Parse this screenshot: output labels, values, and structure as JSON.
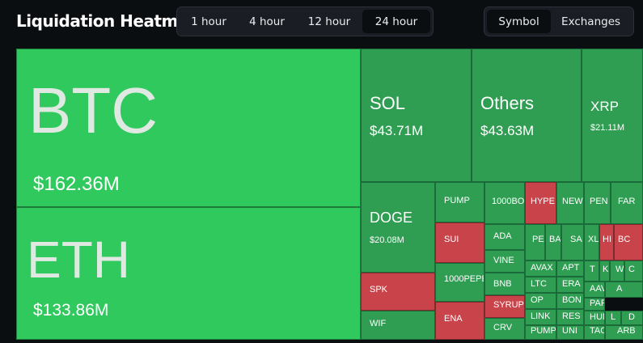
{
  "header": {
    "title": "Liquidation Heatmap"
  },
  "timeframes": [
    "1 hour",
    "4 hour",
    "12 hour",
    "24 hour"
  ],
  "active_timeframe": "24 hour",
  "views": [
    "Symbol",
    "Exchanges"
  ],
  "active_view": "Symbol",
  "colors": {
    "long_up": "#2f9e52",
    "highlight": "#30c95e",
    "short_down": "#c9444a",
    "bg": "#0b0e11"
  },
  "heatmap": [
    {
      "symbol": "BTC",
      "value": "$162.36M",
      "color": "highlight"
    },
    {
      "symbol": "ETH",
      "value": "$133.86M",
      "color": "highlight"
    },
    {
      "symbol": "SOL",
      "value": "$43.71M",
      "color": "up"
    },
    {
      "symbol": "Others",
      "value": "$43.63M",
      "color": "up"
    },
    {
      "symbol": "XRP",
      "value": "$21.11M",
      "color": "up"
    },
    {
      "symbol": "DOGE",
      "value": "$20.08M",
      "color": "up"
    },
    {
      "symbol": "PUMP",
      "color": "up"
    },
    {
      "symbol": "1000BO",
      "color": "up"
    },
    {
      "symbol": "HYPE",
      "color": "down"
    },
    {
      "symbol": "NEW",
      "color": "up"
    },
    {
      "symbol": "PEN",
      "color": "up"
    },
    {
      "symbol": "FAR",
      "color": "up"
    },
    {
      "symbol": "SUI",
      "color": "down"
    },
    {
      "symbol": "ADA",
      "color": "up"
    },
    {
      "symbol": "PE",
      "color": "up"
    },
    {
      "symbol": "BA",
      "color": "up"
    },
    {
      "symbol": "SA",
      "color": "up"
    },
    {
      "symbol": "XL",
      "color": "up"
    },
    {
      "symbol": "HI",
      "color": "down"
    },
    {
      "symbol": "BC",
      "color": "down"
    },
    {
      "symbol": "VINE",
      "color": "up"
    },
    {
      "symbol": "AVAX",
      "color": "up"
    },
    {
      "symbol": "APT",
      "color": "up"
    },
    {
      "symbol": "T",
      "color": "up"
    },
    {
      "symbol": "K",
      "color": "up"
    },
    {
      "symbol": "W",
      "color": "up"
    },
    {
      "symbol": "C",
      "color": "up"
    },
    {
      "symbol": "1000PEPE",
      "color": "up"
    },
    {
      "symbol": "BNB",
      "color": "up"
    },
    {
      "symbol": "LTC",
      "color": "up"
    },
    {
      "symbol": "ERA",
      "color": "up"
    },
    {
      "symbol": "AAV",
      "color": "up"
    },
    {
      "symbol": "A",
      "color": "up"
    },
    {
      "symbol": "SPK",
      "color": "down"
    },
    {
      "symbol": "OP",
      "color": "up"
    },
    {
      "symbol": "BON",
      "color": "up"
    },
    {
      "symbol": "PAR",
      "color": "up"
    },
    {
      "symbol": "ENA",
      "color": "down"
    },
    {
      "symbol": "SYRUP",
      "color": "down"
    },
    {
      "symbol": "LINK",
      "color": "up"
    },
    {
      "symbol": "RES",
      "color": "up"
    },
    {
      "symbol": "HUN",
      "color": "up"
    },
    {
      "symbol": "L",
      "color": "up"
    },
    {
      "symbol": "D",
      "color": "up"
    },
    {
      "symbol": "WIF",
      "color": "up"
    },
    {
      "symbol": "CRV",
      "color": "up"
    },
    {
      "symbol": "PUMP",
      "color": "up"
    },
    {
      "symbol": "UNI",
      "color": "up"
    },
    {
      "symbol": "TAO",
      "color": "up"
    },
    {
      "symbol": "ARB",
      "color": "up"
    }
  ]
}
